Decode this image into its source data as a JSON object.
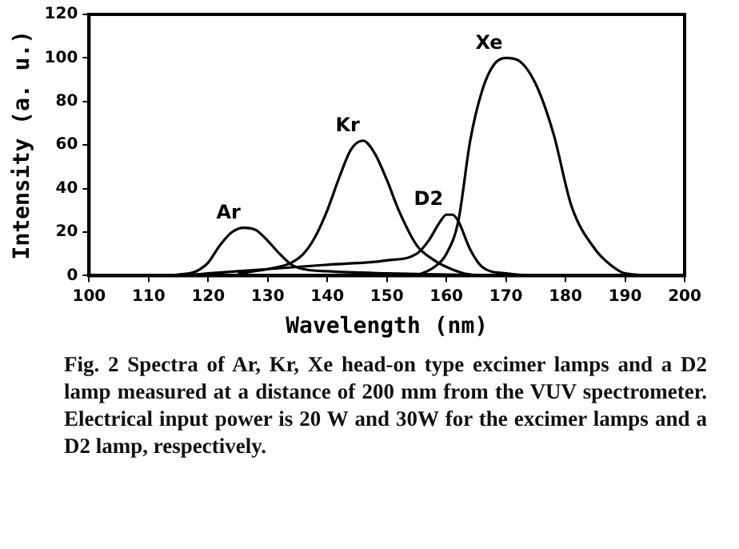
{
  "chart_data": {
    "type": "line",
    "xlabel": "Wavelength (nm)",
    "ylabel": "Intensity (a. u.)",
    "xlim": [
      100,
      200
    ],
    "ylim": [
      0,
      120
    ],
    "xticks": [
      100,
      110,
      120,
      130,
      140,
      150,
      160,
      170,
      180,
      190,
      200
    ],
    "yticks": [
      0,
      20,
      40,
      60,
      80,
      100,
      120
    ],
    "grid": false,
    "legend": false,
    "marker": "none",
    "line_style": "solid",
    "series": [
      {
        "name": "Ar",
        "color": "#000000",
        "x": [
          110,
          115,
          118,
          120,
          122,
          124,
          126,
          128,
          130,
          132,
          134,
          136,
          140,
          150,
          160,
          170
        ],
        "values": [
          0,
          0.5,
          2,
          6,
          14,
          20,
          22,
          21,
          16,
          10,
          5,
          3,
          2,
          1,
          0.5,
          0
        ]
      },
      {
        "name": "Kr",
        "color": "#000000",
        "x": [
          125,
          130,
          134,
          136,
          138,
          140,
          142,
          144,
          146,
          148,
          150,
          152,
          155,
          158,
          160,
          163,
          166
        ],
        "values": [
          1,
          3,
          6,
          10,
          18,
          30,
          45,
          58,
          62,
          56,
          44,
          30,
          14,
          7,
          4,
          1,
          0
        ]
      },
      {
        "name": "D2",
        "color": "#000000",
        "x": [
          115,
          120,
          130,
          140,
          150,
          155,
          157,
          159,
          160,
          161,
          162,
          164,
          166,
          170,
          175
        ],
        "values": [
          0,
          1,
          3,
          5,
          7,
          10,
          16,
          25,
          28,
          28,
          25,
          12,
          4,
          1,
          0
        ]
      },
      {
        "name": "Xe",
        "color": "#000000",
        "x": [
          155,
          158,
          160,
          162,
          164,
          166,
          168,
          170,
          172,
          175,
          178,
          181,
          185,
          188,
          190,
          195
        ],
        "values": [
          0,
          4,
          10,
          25,
          62,
          85,
          97,
          100,
          99,
          88,
          65,
          32,
          12,
          4,
          1,
          0
        ]
      }
    ],
    "annotations": [
      "Fig. 2 Spectra of Ar, Kr, Xe head-on type excimer lamps and a D2 lamp measured at a distance of 200 mm from the VUV spectrometer. Electrical input power is 20 W and 30W for the excimer lamps and a D2 lamp, respectively."
    ]
  }
}
